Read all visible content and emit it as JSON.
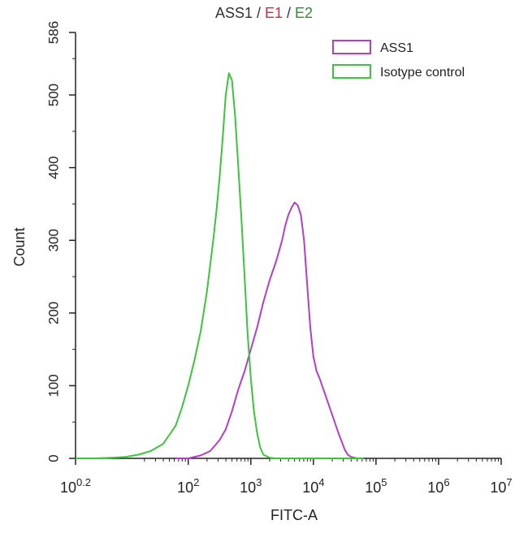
{
  "chart_data": {
    "type": "line",
    "title_parts": [
      {
        "text": "ASS1",
        "color": "#333333"
      },
      {
        "text": " / ",
        "color": "#333333"
      },
      {
        "text": "E1",
        "color": "#c0304a"
      },
      {
        "text": " / ",
        "color": "#333333"
      },
      {
        "text": "E2",
        "color": "#2e8b3a"
      }
    ],
    "xlabel": "FITC-A",
    "ylabel": "Count",
    "x_scale": "log",
    "xlim": [
      0.2,
      7
    ],
    "ylim": [
      0,
      586
    ],
    "x_ticks": [
      {
        "base": "10",
        "exp": "0.2",
        "value": 0.2
      },
      {
        "base": "10",
        "exp": "2",
        "value": 2
      },
      {
        "base": "10",
        "exp": "3",
        "value": 3
      },
      {
        "base": "10",
        "exp": "4",
        "value": 4
      },
      {
        "base": "10",
        "exp": "5",
        "value": 5
      },
      {
        "base": "10",
        "exp": "6",
        "value": 6
      },
      {
        "base": "10",
        "exp": "7",
        "value": 7
      }
    ],
    "y_ticks": [
      0,
      100,
      200,
      300,
      400,
      500,
      586
    ],
    "legend_position": "top-right",
    "series": [
      {
        "name": "ASS1",
        "color": "#b23ec9",
        "x": [
          1.8,
          2.0,
          2.2,
          2.35,
          2.5,
          2.6,
          2.7,
          2.8,
          2.9,
          3.0,
          3.1,
          3.2,
          3.3,
          3.4,
          3.5,
          3.55,
          3.6,
          3.65,
          3.7,
          3.75,
          3.8,
          3.85,
          3.9,
          3.95,
          4.0,
          4.05,
          4.1,
          4.2,
          4.3,
          4.4,
          4.5,
          4.55,
          4.6,
          4.7,
          4.8
        ],
        "y": [
          0,
          0,
          4,
          10,
          25,
          40,
          65,
          95,
          120,
          150,
          180,
          215,
          245,
          270,
          300,
          320,
          335,
          345,
          352,
          348,
          335,
          300,
          240,
          180,
          140,
          120,
          110,
          85,
          60,
          35,
          12,
          5,
          2,
          0,
          0
        ]
      },
      {
        "name": "Isotype control",
        "color": "#3cc43c",
        "x": [
          0.2,
          0.5,
          0.8,
          1.0,
          1.2,
          1.4,
          1.6,
          1.8,
          1.9,
          2.0,
          2.1,
          2.2,
          2.3,
          2.4,
          2.45,
          2.5,
          2.55,
          2.6,
          2.65,
          2.7,
          2.75,
          2.8,
          2.85,
          2.9,
          2.95,
          3.0,
          3.05,
          3.1,
          3.15,
          3.2,
          3.3,
          3.4,
          3.6,
          4.0,
          4.8
        ],
        "y": [
          0,
          0,
          1,
          2,
          5,
          10,
          20,
          45,
          70,
          100,
          135,
          175,
          230,
          300,
          340,
          385,
          440,
          500,
          530,
          520,
          470,
          400,
          330,
          250,
          170,
          110,
          65,
          35,
          15,
          5,
          1,
          0,
          0,
          0,
          0
        ]
      }
    ]
  }
}
